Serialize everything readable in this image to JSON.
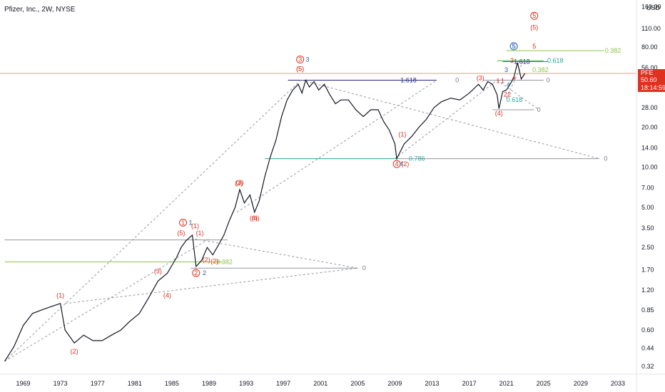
{
  "legend": {
    "title": "Pfizer, Inc., 2W, NYSE"
  },
  "currency": "USD",
  "price_tag": {
    "symbol": "PFE",
    "price": "50.60",
    "countdown": "18:14:59",
    "color": "#e0301e",
    "value": 50.6
  },
  "chart_data": {
    "type": "line",
    "title": "Pfizer, Inc., 2W, NYSE",
    "y_scale": "log",
    "ylim": [
      0.28,
      180
    ],
    "xlim": [
      1966.5,
      2035.0
    ],
    "y_ticks": [
      "160.00",
      "110.00",
      "80.00",
      "56.00",
      "40.00",
      "28.00",
      "20.00",
      "14.00",
      "10.00",
      "7.00",
      "5.00",
      "3.50",
      "2.50",
      "1.70",
      "1.20",
      "0.85",
      "0.60",
      "0.44",
      "0.32"
    ],
    "x_ticks": [
      "1969",
      "1973",
      "1977",
      "1981",
      "1985",
      "1989",
      "1993",
      "1997",
      "2001",
      "2005",
      "2009",
      "2013",
      "2017",
      "2021",
      "2025",
      "2029",
      "2033"
    ],
    "series": [
      {
        "color": "#131722",
        "x": [
          1967.0,
          1968.0,
          1969.0,
          1970.0,
          1971.0,
          1972.0,
          1973.0,
          1973.5,
          1974.5,
          1975.5,
          1976.5,
          1977.5,
          1978.5,
          1979.5,
          1980.5,
          1981.5,
          1982.5,
          1983.5,
          1984.5,
          1985.5,
          1986.0,
          1986.5,
          1987.2,
          1987.6,
          1988.2,
          1988.8,
          1989.4,
          1990.0,
          1990.6,
          1991.2,
          1991.8,
          1992.3,
          1992.8,
          1993.4,
          1993.9,
          1994.4,
          1995.0,
          1995.6,
          1996.2,
          1996.8,
          1997.4,
          1998.0,
          1998.6,
          1999.0,
          1999.4,
          1999.8,
          2000.3,
          2000.8,
          2001.4,
          2002.0,
          2002.6,
          2003.2,
          2004.0,
          2004.8,
          2005.6,
          2006.4,
          2007.2,
          2007.8,
          2008.4,
          2009.0,
          2009.2,
          2010.0,
          2010.8,
          2011.6,
          2012.4,
          2013.2,
          2014.0,
          2015.0,
          2016.0,
          2017.0,
          2018.0,
          2018.5,
          2019.0,
          2019.5,
          2020.0,
          2020.2,
          2020.6,
          2021.0,
          2021.4,
          2021.8,
          2022.2,
          2022.6,
          2023.0
        ],
        "values": [
          0.35,
          0.45,
          0.65,
          0.8,
          0.85,
          0.9,
          0.95,
          0.6,
          0.48,
          0.55,
          0.5,
          0.5,
          0.55,
          0.6,
          0.7,
          0.8,
          1.05,
          1.4,
          1.6,
          2.1,
          2.5,
          2.8,
          3.1,
          1.8,
          2.0,
          2.5,
          2.2,
          2.6,
          3.1,
          4.0,
          5.0,
          6.8,
          5.4,
          6.2,
          4.6,
          5.6,
          8.5,
          12.0,
          16.0,
          24.0,
          32.0,
          38.0,
          42.0,
          36.0,
          45.0,
          40.0,
          44.0,
          38.0,
          42.0,
          35.0,
          30.0,
          32.0,
          32.0,
          27.0,
          24.0,
          27.0,
          27.0,
          22.0,
          19.0,
          15.0,
          11.6,
          15.0,
          17.0,
          20.0,
          23.0,
          28.0,
          31.0,
          33.0,
          32.0,
          36.0,
          42.0,
          38.0,
          44.0,
          42.0,
          35.0,
          27.5,
          37.0,
          38.0,
          42.0,
          47.0,
          61.0,
          46.0,
          50.6
        ]
      }
    ],
    "annotations": {
      "waves_red": [
        "(1)",
        "(2)",
        "(3)",
        "(4)",
        "(5)",
        "(1)",
        "(2)",
        "(3)",
        "(4)",
        "(5)",
        "(1)",
        "(2)",
        "(3)",
        "(4)",
        "(5)",
        "(1)",
        "(2)",
        "(3)",
        "(4)",
        "(5)",
        "5",
        "4",
        "3",
        "1",
        "1",
        "2",
        "2"
      ],
      "waves_blue": [
        "1",
        "2",
        "3",
        "4",
        "5",
        "3",
        "4"
      ],
      "circled": [
        "1",
        "2",
        "3",
        "4",
        "5",
        "5"
      ],
      "fib_labels": [
        "1.618",
        "0",
        "0.786",
        "0",
        "0.382",
        "0",
        "1.618",
        "0.618",
        "0.382",
        "0",
        "0.618",
        "0",
        "0.382",
        "0",
        "0"
      ]
    }
  }
}
